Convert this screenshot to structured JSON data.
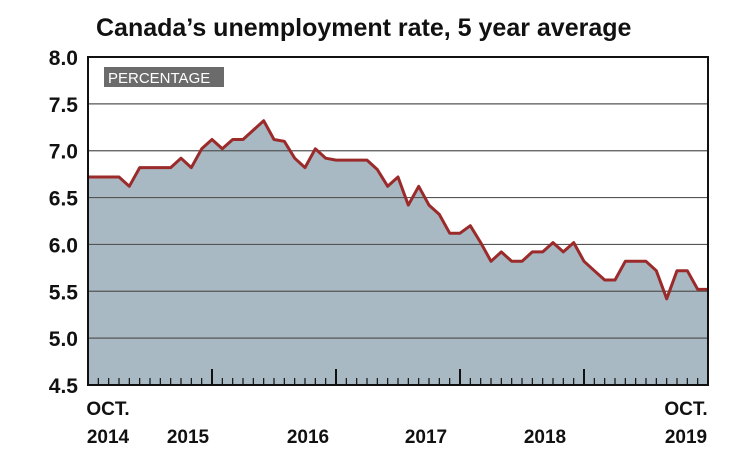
{
  "chart_data": {
    "type": "area",
    "title": "Canada’s unemployment rate, 5 year average",
    "unit_label": "PERCENTAGE",
    "ylim": [
      4.5,
      8.0
    ],
    "yticks": [
      "8.0",
      "7.5",
      "7.0",
      "6.5",
      "6.0",
      "5.5",
      "5.0",
      "4.5"
    ],
    "x_labels": [
      {
        "top": "OCT.",
        "bottom": "2014"
      },
      {
        "top": "",
        "bottom": "2015"
      },
      {
        "top": "",
        "bottom": "2016"
      },
      {
        "top": "",
        "bottom": "2017"
      },
      {
        "top": "",
        "bottom": "2018"
      },
      {
        "top": "OCT.",
        "bottom": "2019"
      }
    ],
    "x_start": "2014-10",
    "x_end": "2019-10",
    "series": [
      {
        "x": [
          "2014-10",
          "2014-11",
          "2014-12",
          "2015-01",
          "2015-02",
          "2015-03",
          "2015-04",
          "2015-05",
          "2015-06",
          "2015-07",
          "2015-08",
          "2015-09",
          "2015-10",
          "2015-11",
          "2015-12",
          "2016-01",
          "2016-02",
          "2016-03",
          "2016-04",
          "2016-05",
          "2016-06",
          "2016-07",
          "2016-08",
          "2016-09",
          "2016-10",
          "2016-11",
          "2016-12",
          "2017-01",
          "2017-02",
          "2017-03",
          "2017-04",
          "2017-05",
          "2017-06",
          "2017-07",
          "2017-08",
          "2017-09",
          "2017-10",
          "2017-11",
          "2017-12",
          "2018-01",
          "2018-02",
          "2018-03",
          "2018-04",
          "2018-05",
          "2018-06",
          "2018-07",
          "2018-08",
          "2018-09",
          "2018-10",
          "2018-11",
          "2018-12",
          "2019-01",
          "2019-02",
          "2019-03",
          "2019-04",
          "2019-05",
          "2019-06",
          "2019-07",
          "2019-08",
          "2019-09",
          "2019-10"
        ],
        "values": [
          6.72,
          6.72,
          6.72,
          6.72,
          6.62,
          6.82,
          6.82,
          6.82,
          6.82,
          6.92,
          6.82,
          7.02,
          7.12,
          7.02,
          7.12,
          7.12,
          7.22,
          7.32,
          7.12,
          7.1,
          6.92,
          6.82,
          7.02,
          6.92,
          6.9,
          6.9,
          6.9,
          6.9,
          6.8,
          6.62,
          6.72,
          6.42,
          6.62,
          6.42,
          6.32,
          6.12,
          6.12,
          6.2,
          6.02,
          5.82,
          5.92,
          5.82,
          5.82,
          5.92,
          5.92,
          6.02,
          5.92,
          6.02,
          5.82,
          5.72,
          5.62,
          5.62,
          5.82,
          5.82,
          5.82,
          5.72,
          5.42,
          5.72,
          5.72,
          5.52,
          5.52
        ]
      }
    ],
    "colors": {
      "fill": "#a8b9c4",
      "line": "#9b2a2a",
      "grid": "#555555",
      "axis": "#111111",
      "label_bg": "#6b6b6b"
    }
  }
}
